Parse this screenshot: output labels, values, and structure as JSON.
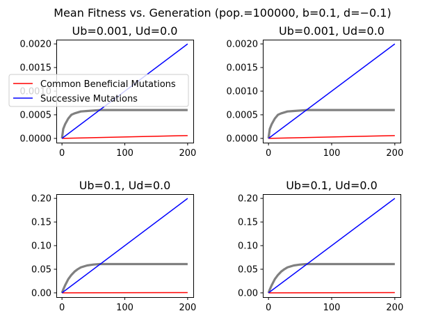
{
  "figure": {
    "suptitle": "Mean Fitness vs. Generation (pop.=100000, b=0.1, d=−0.1)"
  },
  "legend": {
    "entries": [
      {
        "label": "Common Beneficial Mutations",
        "color": "#ff0000"
      },
      {
        "label": "Successive Mutations",
        "color": "#0000ff"
      }
    ],
    "placement": "upper-left of top-left panel"
  },
  "chart_data": [
    {
      "type": "line",
      "title": "Ub=0.001, Ud=0.0",
      "xlim": [
        0,
        200
      ],
      "ylim": [
        0,
        0.002
      ],
      "xticks": [
        0,
        100,
        200
      ],
      "xtick_labels": [
        "0",
        "100",
        "200"
      ],
      "yticks": [
        0,
        0.0005,
        0.001,
        0.0015,
        0.002
      ],
      "ytick_labels": [
        "0.0000",
        "0.0005",
        "0.0010",
        "0.0015",
        "0.0020"
      ],
      "series": [
        {
          "name": "Common Beneficial Mutations",
          "color": "#ff0000",
          "x": [
            0,
            200
          ],
          "y": [
            0,
            6e-05
          ]
        },
        {
          "name": "Successive Mutations",
          "color": "#0000ff",
          "x": [
            0,
            200
          ],
          "y": [
            0,
            0.002
          ]
        },
        {
          "color": "#808080",
          "x": [
            0,
            2,
            5,
            10,
            15,
            20,
            30,
            40,
            60,
            80,
            100,
            150,
            200
          ],
          "y": [
            0,
            0.0002,
            0.0003,
            0.00042,
            0.0005,
            0.00053,
            0.00057,
            0.00058,
            0.0006,
            0.0006,
            0.0006,
            0.0006,
            0.0006
          ]
        }
      ]
    },
    {
      "type": "line",
      "title": "Ub=0.001, Ud=0.0",
      "xlim": [
        0,
        200
      ],
      "ylim": [
        0,
        0.002
      ],
      "xticks": [
        0,
        100,
        200
      ],
      "xtick_labels": [
        "0",
        "100",
        "200"
      ],
      "yticks": [
        0,
        0.0005,
        0.001,
        0.0015,
        0.002
      ],
      "ytick_labels": [
        "0.0000",
        "0.0005",
        "0.0010",
        "0.0015",
        "0.0020"
      ],
      "series": [
        {
          "name": "Common Beneficial Mutations",
          "color": "#ff0000",
          "x": [
            0,
            200
          ],
          "y": [
            0,
            6e-05
          ]
        },
        {
          "name": "Successive Mutations",
          "color": "#0000ff",
          "x": [
            0,
            200
          ],
          "y": [
            0,
            0.002
          ]
        },
        {
          "color": "#808080",
          "x": [
            0,
            2,
            5,
            10,
            15,
            20,
            30,
            40,
            60,
            80,
            100,
            150,
            200
          ],
          "y": [
            0,
            0.0002,
            0.0003,
            0.00042,
            0.0005,
            0.00053,
            0.00057,
            0.00058,
            0.0006,
            0.0006,
            0.0006,
            0.0006,
            0.0006
          ]
        }
      ]
    },
    {
      "type": "line",
      "title": "Ub=0.1, Ud=0.0",
      "xlim": [
        0,
        200
      ],
      "ylim": [
        0,
        0.2
      ],
      "xticks": [
        0,
        100,
        200
      ],
      "xtick_labels": [
        "0",
        "100",
        "200"
      ],
      "yticks": [
        0,
        0.05,
        0.1,
        0.15,
        0.2
      ],
      "ytick_labels": [
        "0.00",
        "0.05",
        "0.10",
        "0.15",
        "0.20"
      ],
      "series": [
        {
          "name": "Common Beneficial Mutations",
          "color": "#ff0000",
          "x": [
            0,
            200
          ],
          "y": [
            0,
            0.0006
          ]
        },
        {
          "name": "Successive Mutations",
          "color": "#0000ff",
          "x": [
            0,
            200
          ],
          "y": [
            0,
            0.2
          ]
        },
        {
          "color": "#808080",
          "x": [
            0,
            2,
            5,
            10,
            15,
            20,
            25,
            30,
            40,
            50,
            60,
            80,
            100,
            150,
            200
          ],
          "y": [
            0,
            0.007,
            0.016,
            0.029,
            0.038,
            0.045,
            0.05,
            0.054,
            0.058,
            0.06,
            0.061,
            0.061,
            0.061,
            0.061,
            0.061
          ]
        }
      ]
    },
    {
      "type": "line",
      "title": "Ub=0.1, Ud=0.0",
      "xlim": [
        0,
        200
      ],
      "ylim": [
        0,
        0.2
      ],
      "xticks": [
        0,
        100,
        200
      ],
      "xtick_labels": [
        "0",
        "100",
        "200"
      ],
      "yticks": [
        0,
        0.05,
        0.1,
        0.15,
        0.2
      ],
      "ytick_labels": [
        "0.00",
        "0.05",
        "0.10",
        "0.15",
        "0.20"
      ],
      "series": [
        {
          "name": "Common Beneficial Mutations",
          "color": "#ff0000",
          "x": [
            0,
            200
          ],
          "y": [
            0,
            0.0006
          ]
        },
        {
          "name": "Successive Mutations",
          "color": "#0000ff",
          "x": [
            0,
            200
          ],
          "y": [
            0,
            0.2
          ]
        },
        {
          "color": "#808080",
          "x": [
            0,
            2,
            5,
            10,
            15,
            20,
            25,
            30,
            40,
            50,
            60,
            80,
            100,
            150,
            200
          ],
          "y": [
            0,
            0.007,
            0.016,
            0.029,
            0.038,
            0.045,
            0.05,
            0.054,
            0.058,
            0.06,
            0.061,
            0.061,
            0.061,
            0.061,
            0.061
          ]
        }
      ]
    }
  ]
}
